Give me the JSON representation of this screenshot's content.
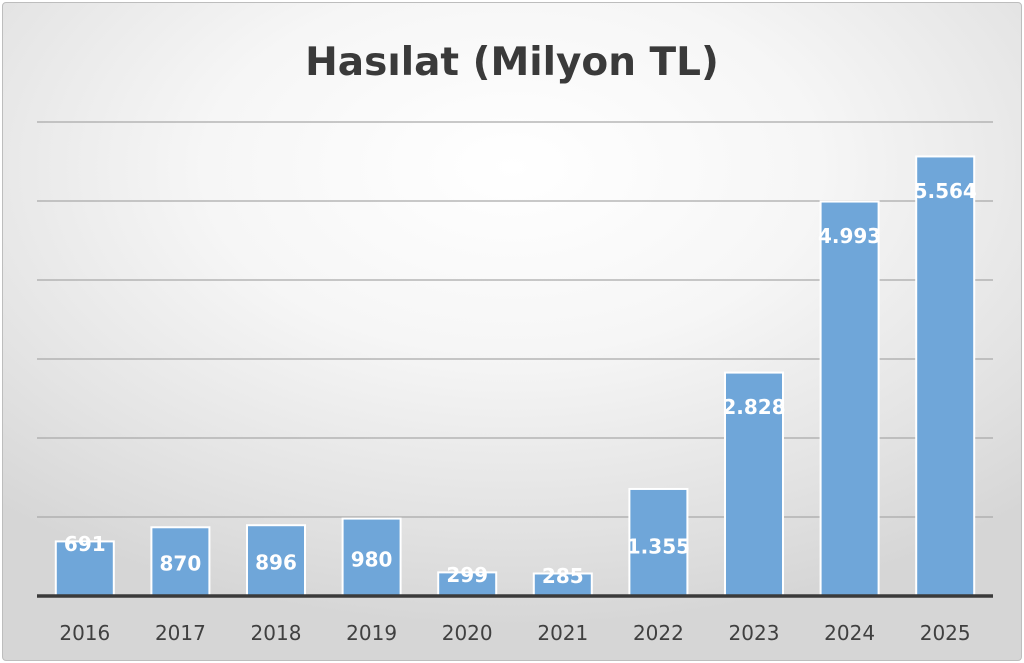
{
  "chart_data": {
    "type": "bar",
    "title": "Hasılat (Milyon TL)",
    "xlabel": "",
    "ylabel": "",
    "categories": [
      "2016",
      "2017",
      "2018",
      "2019",
      "2020",
      "2021",
      "2022",
      "2023",
      "2024",
      "2025"
    ],
    "values": [
      691,
      870,
      896,
      980,
      299,
      285,
      1355,
      2828,
      4993,
      5564
    ],
    "value_labels": [
      "691",
      "870",
      "896",
      "980",
      "299",
      "285",
      "1.355",
      "2.828",
      "4.993",
      "5.564"
    ],
    "ylim": [
      0,
      6000
    ],
    "gridlines": [
      1000,
      2000,
      3000,
      4000,
      5000,
      6000
    ],
    "grid": true,
    "legend": "none",
    "colors": {
      "bar": "#6fa6d9",
      "bar_border": "#ffffff",
      "value_label": "#ffffff",
      "gridline": "#a9a9a9",
      "axis_line": "#3a3a3a",
      "tick_label": "#404040",
      "title": "#3a3a3a"
    }
  }
}
